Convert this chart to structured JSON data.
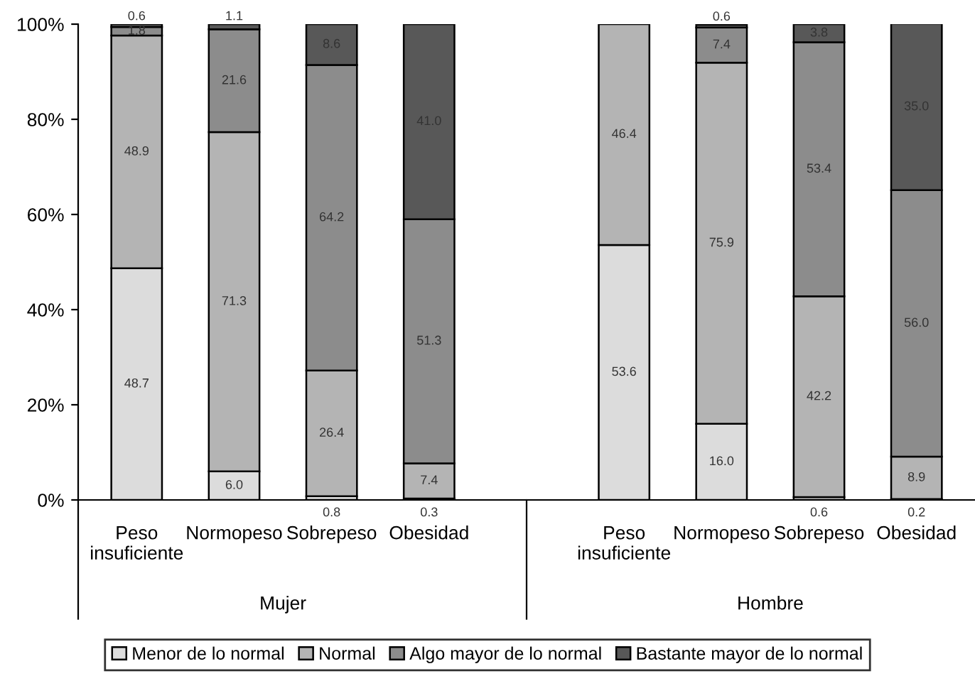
{
  "chart_data": {
    "type": "bar",
    "stacked": true,
    "categories": [
      "Peso\ninsuficiente",
      "Normopeso",
      "Sobrepeso",
      "Obesidad",
      null,
      "Peso\ninsuficiente",
      "Normopeso",
      "Sobrepeso",
      "Obesidad"
    ],
    "annotations": [
      "Mujer",
      "Hombre"
    ],
    "series": [
      {
        "name": "Menor de lo normal",
        "color": "#dcdcdc",
        "values": [
          48.7,
          6.0,
          0.8,
          0.3,
          null,
          53.6,
          16.0,
          0.6,
          0.2
        ],
        "value_labels": [
          "48.7",
          "6.0",
          "0.8",
          "0.3",
          null,
          "53.6",
          "16.0",
          "0.6",
          "0.2"
        ]
      },
      {
        "name": "Normal",
        "color": "#b4b4b4",
        "values": [
          48.9,
          71.3,
          26.4,
          7.4,
          null,
          46.4,
          75.9,
          42.2,
          8.9
        ],
        "value_labels": [
          "48.9",
          "71.3",
          "26.4",
          "7.4",
          null,
          "46.4",
          "75.9",
          "42.2",
          "8.9"
        ]
      },
      {
        "name": "Algo mayor de lo normal",
        "color": "#8c8c8c",
        "values": [
          1.8,
          21.6,
          64.2,
          51.3,
          null,
          null,
          7.4,
          53.4,
          56.0
        ],
        "value_labels": [
          "1.8",
          "21.6",
          "64.2",
          "51.3",
          null,
          null,
          "7.4",
          "53.4",
          "56.0"
        ]
      },
      {
        "name": "Bastante mayor de lo normal",
        "color": "#585858",
        "values": [
          0.6,
          1.1,
          8.6,
          41.0,
          null,
          null,
          0.6,
          3.8,
          35.0
        ],
        "value_labels": [
          "0.6",
          "1.1",
          "8.6",
          "41.0",
          null,
          null,
          "0.6",
          "3.8",
          "35.0"
        ]
      }
    ],
    "ylim": [
      0,
      100
    ],
    "yticks": [
      {
        "value": 0,
        "label": "0%"
      },
      {
        "value": 20,
        "label": "20%"
      },
      {
        "value": 40,
        "label": "40%"
      },
      {
        "value": 60,
        "label": "60%"
      },
      {
        "value": 80,
        "label": "80%"
      },
      {
        "value": 100,
        "label": "100%"
      }
    ],
    "grid": false,
    "legend": "bottom"
  }
}
